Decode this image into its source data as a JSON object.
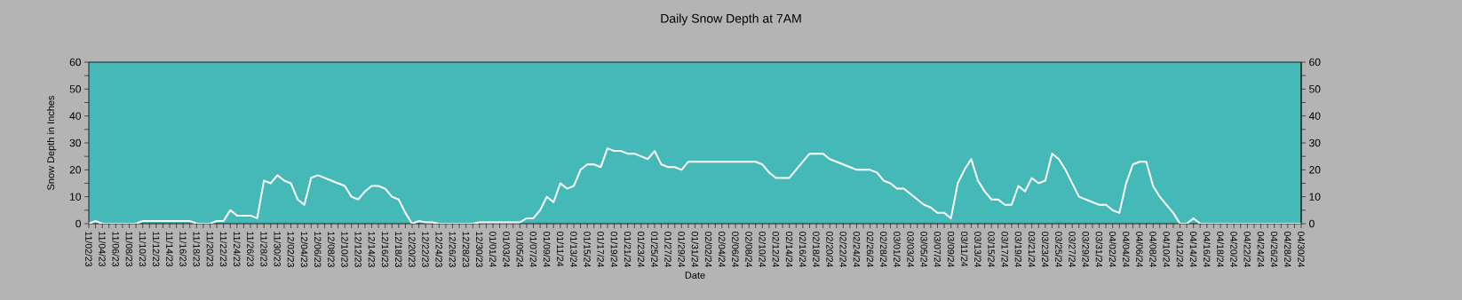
{
  "chart_data": {
    "type": "line",
    "title": "Daily Snow Depth at 7AM",
    "xlabel": "Date",
    "ylabel": "Snow Depth in Inches",
    "categories": [
      "11/02/23",
      null,
      "11/04/23",
      null,
      "11/06/23",
      null,
      "11/08/23",
      null,
      "11/10/23",
      null,
      "11/12/23",
      null,
      "11/14/23",
      null,
      "11/16/23",
      null,
      "11/18/23",
      null,
      "11/20/23",
      null,
      "11/22/23",
      null,
      "11/24/23",
      null,
      "11/26/23",
      null,
      "11/28/23",
      null,
      "11/30/23",
      null,
      "12/02/23",
      null,
      "12/04/23",
      null,
      "12/06/23",
      null,
      "12/08/23",
      null,
      "12/10/23",
      null,
      "12/12/23",
      null,
      "12/14/23",
      null,
      "12/16/23",
      null,
      "12/18/23",
      null,
      "12/20/23",
      null,
      "12/22/23",
      null,
      "12/24/23",
      null,
      "12/26/23",
      null,
      "12/28/23",
      null,
      "12/30/23",
      null,
      "01/01/24",
      null,
      "01/03/24",
      null,
      "01/05/24",
      null,
      "01/07/24",
      null,
      "01/09/24",
      null,
      "01/11/24",
      null,
      "01/13/24",
      null,
      "01/15/24",
      null,
      "01/17/24",
      null,
      "01/19/24",
      null,
      "01/21/24",
      null,
      "01/23/24",
      null,
      "01/25/24",
      null,
      "01/27/24",
      null,
      "01/29/24",
      null,
      "01/31/24",
      null,
      "02/02/24",
      null,
      "02/04/24",
      null,
      "02/06/24",
      null,
      "02/08/24",
      null,
      "02/10/24",
      null,
      "02/12/24",
      null,
      "02/14/24",
      null,
      "02/16/24",
      null,
      "02/18/24",
      null,
      "02/20/24",
      null,
      "02/22/24",
      null,
      "02/24/24",
      null,
      "02/26/24",
      null,
      "02/28/24",
      null,
      "03/01/24",
      null,
      "03/03/24",
      null,
      "03/05/24",
      null,
      "03/07/24",
      null,
      "03/09/24",
      null,
      "03/11/24",
      null,
      "03/13/24",
      null,
      "03/15/24",
      null,
      "03/17/24",
      null,
      "03/19/24",
      null,
      "03/21/24",
      null,
      "03/23/24",
      null,
      "03/25/24",
      null,
      "03/27/24",
      null,
      "03/29/24",
      null,
      "03/31/24",
      null,
      "04/02/24",
      null,
      "04/04/24",
      null,
      "04/06/24",
      null,
      "04/08/24",
      null,
      "04/10/24",
      null,
      "04/12/24",
      null,
      "04/14/24",
      null,
      "04/16/24",
      null,
      "04/18/24",
      null,
      "04/20/24",
      null,
      "04/22/24",
      null,
      "04/24/24",
      null,
      "04/26/24",
      null,
      "04/28/24",
      null,
      "04/30/24"
    ],
    "series": [
      {
        "color": "#ffffff",
        "values": [
          0,
          1,
          0,
          0,
          0,
          0,
          0,
          0,
          1,
          1,
          1,
          1,
          1,
          1,
          1,
          1,
          0,
          0,
          0,
          1,
          1,
          5,
          3,
          3,
          3,
          2,
          16,
          15,
          18,
          16,
          15,
          9,
          7,
          17,
          18,
          17,
          16,
          15,
          14,
          10,
          9,
          12,
          14,
          14,
          13,
          10,
          9,
          4,
          0,
          1,
          0.5,
          0.5,
          0,
          0,
          0,
          0,
          0,
          0,
          0.5,
          0.5,
          0.5,
          0.5,
          0.5,
          0.5,
          0.5,
          2,
          2,
          5,
          10,
          8,
          15,
          13,
          14,
          20,
          22,
          22,
          21,
          28,
          27,
          27,
          26,
          26,
          25,
          24,
          27,
          22,
          21,
          21,
          20,
          23,
          23,
          23,
          23,
          23,
          23,
          23,
          23,
          23,
          23,
          23,
          22,
          19,
          17,
          17,
          17,
          20,
          23,
          26,
          26,
          26,
          24,
          23,
          22,
          21,
          20,
          20,
          20,
          19,
          16,
          15,
          13,
          13,
          11,
          9,
          7,
          6,
          4,
          4,
          2,
          15,
          20,
          24,
          16,
          12,
          9,
          9,
          7,
          7,
          14,
          12,
          17,
          15,
          16,
          26,
          24,
          20,
          15,
          10,
          9,
          8,
          7,
          7,
          5,
          4,
          15,
          22,
          23,
          23,
          14,
          10,
          7,
          4,
          0,
          0,
          2,
          0,
          0,
          0,
          0,
          0,
          0,
          0,
          0,
          0,
          0,
          0,
          0,
          0,
          0,
          0,
          0
        ]
      }
    ],
    "ylim": [
      0,
      60
    ],
    "yticks": [
      0,
      {
        "value": 5,
        "label": null
      },
      10,
      {
        "value": 15,
        "label": null
      },
      20,
      {
        "value": 25,
        "label": null
      },
      30,
      {
        "value": 35,
        "label": null
      },
      40,
      {
        "value": 45,
        "label": null
      },
      50,
      {
        "value": 55,
        "label": null
      },
      60
    ],
    "y2lim": [
      0,
      60
    ],
    "y2ticks": [
      0,
      {
        "value": 5,
        "label": null
      },
      10,
      {
        "value": 15,
        "label": null
      },
      20,
      {
        "value": 25,
        "label": null
      },
      30,
      {
        "value": 35,
        "label": null
      },
      40,
      {
        "value": 45,
        "label": null
      },
      50,
      {
        "value": 55,
        "label": null
      },
      60
    ],
    "grid": false,
    "legend": false
  }
}
